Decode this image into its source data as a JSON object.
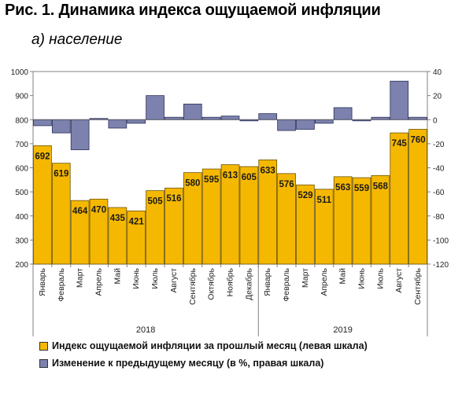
{
  "title": "Рис. 1. Динамика индекса ощущаемой инфляции",
  "subtitle": "а) население",
  "colors": {
    "bar": "#F5B800",
    "bar_stroke": "#6b5200",
    "change": "#7C82AD",
    "change_stroke": "#2b2f5a",
    "axis": "#808080"
  },
  "chart_data": {
    "type": "bar",
    "categories": [
      "Январь",
      "Февраль",
      "Март",
      "Апрель",
      "Май",
      "Июнь",
      "Июль",
      "Август",
      "Сентябрь",
      "Октябрь",
      "Ноябрь",
      "Декабрь",
      "Январь",
      "Февраль",
      "Март",
      "Апрель",
      "Май",
      "Июнь",
      "Июль",
      "Август",
      "Сентябрь"
    ],
    "groups": [
      {
        "label": "2018",
        "start": 0,
        "end": 11
      },
      {
        "label": "2019",
        "start": 12,
        "end": 20
      }
    ],
    "series": [
      {
        "name": "Индекс ощущаемой инфляции за прошлый месяц (левая шкала)",
        "axis": "left",
        "values": [
          692,
          619,
          464,
          470,
          435,
          421,
          505,
          516,
          580,
          595,
          613,
          605,
          633,
          576,
          529,
          511,
          563,
          559,
          568,
          745,
          760
        ]
      },
      {
        "name": "Изменение к предыдущему месяцу (в %, правая шкала)",
        "axis": "right",
        "values": [
          -5,
          -11,
          -25,
          1,
          -7,
          -3,
          20,
          2,
          13,
          2,
          3,
          -1,
          5,
          -9,
          -8,
          -3,
          10,
          -1,
          2,
          32,
          2
        ]
      }
    ],
    "left_axis": {
      "ylim": [
        200,
        1000
      ],
      "ticks": [
        "200",
        "300",
        "400",
        "500",
        "600",
        "700",
        "800",
        "900",
        "1000"
      ]
    },
    "right_axis": {
      "ylim": [
        -120,
        40
      ],
      "ticks": [
        "-120",
        "-100",
        "-80",
        "-60",
        "-40",
        "-20",
        "0",
        "20",
        "40"
      ]
    },
    "data_labels": [
      "692",
      "619",
      "464",
      "470",
      "435",
      "421",
      "505",
      "516",
      "580",
      "595",
      "613",
      "605",
      "633",
      "576",
      "529",
      "511",
      "563",
      "559",
      "568",
      "745",
      "760"
    ],
    "legend_position": "bottom",
    "grid": false
  }
}
